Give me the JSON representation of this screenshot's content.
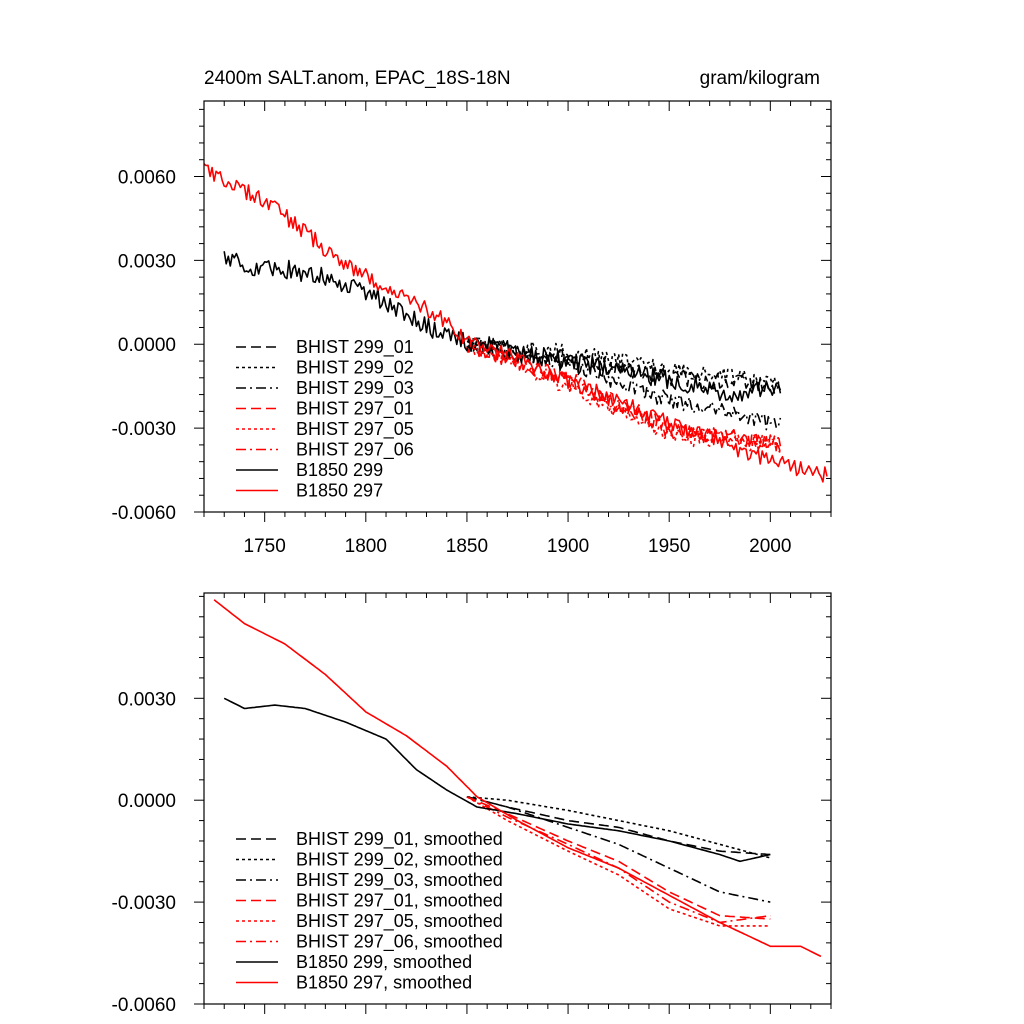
{
  "chart_data": [
    {
      "type": "line",
      "title": "2400m SALT.anom, EPAC_18S-18N",
      "units_label": "gram/kilogram",
      "xlabel": "",
      "ylabel": "",
      "xlim": [
        1720,
        2030
      ],
      "ylim": [
        -0.006,
        0.0087
      ],
      "x_ticks": [
        1750,
        1800,
        1850,
        1900,
        1950,
        2000
      ],
      "x_tick_labels": [
        "1750",
        "1800",
        "1850",
        "1900",
        "1950",
        "2000"
      ],
      "y_ticks": [
        -0.006,
        -0.003,
        0.0,
        0.003,
        0.006
      ],
      "y_tick_labels": [
        "-0.0060",
        "-0.0030",
        "0.0000",
        "0.0030",
        "0.0060"
      ],
      "legend_position": "bottom-left",
      "series": [
        {
          "name": "BHIST 299_01",
          "color": "#000000",
          "dash": "dash",
          "noise": 0.0003,
          "points": [
            [
              1850,
              0.0
            ],
            [
              1900,
              -0.0005
            ],
            [
              1950,
              -0.0012
            ],
            [
              2005,
              -0.0015
            ]
          ]
        },
        {
          "name": "BHIST 299_02",
          "color": "#000000",
          "dash": "dot",
          "noise": 0.0003,
          "points": [
            [
              1850,
              0.0
            ],
            [
              1900,
              -0.0003
            ],
            [
              1950,
              -0.0009
            ],
            [
              2005,
              -0.0014
            ]
          ]
        },
        {
          "name": "BHIST 299_03",
          "color": "#000000",
          "dash": "dashdot",
          "noise": 0.0003,
          "points": [
            [
              1850,
              0.0
            ],
            [
              1900,
              -0.0007
            ],
            [
              1950,
              -0.002
            ],
            [
              2005,
              -0.0029
            ]
          ]
        },
        {
          "name": "BHIST 297_01",
          "color": "#ff0000",
          "dash": "dash",
          "noise": 0.0003,
          "points": [
            [
              1850,
              0.0
            ],
            [
              1900,
              -0.0012
            ],
            [
              1950,
              -0.003
            ],
            [
              2005,
              -0.0036
            ]
          ]
        },
        {
          "name": "BHIST 297_05",
          "color": "#ff0000",
          "dash": "dot",
          "noise": 0.0003,
          "points": [
            [
              1850,
              0.0
            ],
            [
              1900,
              -0.0015
            ],
            [
              1950,
              -0.0033
            ],
            [
              2005,
              -0.0036
            ]
          ]
        },
        {
          "name": "BHIST 297_06",
          "color": "#ff0000",
          "dash": "dashdot",
          "noise": 0.0003,
          "points": [
            [
              1850,
              0.0
            ],
            [
              1900,
              -0.0013
            ],
            [
              1950,
              -0.0031
            ],
            [
              2005,
              -0.0035
            ]
          ]
        },
        {
          "name": "B1850 299",
          "color": "#000000",
          "dash": "solid",
          "noise": 0.00035,
          "points": [
            [
              1730,
              0.003
            ],
            [
              1745,
              0.0028
            ],
            [
              1760,
              0.0027
            ],
            [
              1790,
              0.0022
            ],
            [
              1805,
              0.0017
            ],
            [
              1820,
              0.001
            ],
            [
              1835,
              0.0005
            ],
            [
              1850,
              0.0001
            ],
            [
              1875,
              -0.0003
            ],
            [
              1900,
              -0.0006
            ],
            [
              1925,
              -0.0009
            ],
            [
              1950,
              -0.0013
            ],
            [
              1985,
              -0.0018
            ],
            [
              2005,
              -0.0016
            ]
          ]
        },
        {
          "name": "B1850 297",
          "color": "#ff0000",
          "dash": "solid",
          "noise": 0.0003,
          "points": [
            [
              1720,
              0.0063
            ],
            [
              1740,
              0.0055
            ],
            [
              1760,
              0.0046
            ],
            [
              1780,
              0.0034
            ],
            [
              1800,
              0.0024
            ],
            [
              1820,
              0.0017
            ],
            [
              1835,
              0.0011
            ],
            [
              1850,
              0.0002
            ],
            [
              1900,
              -0.0013
            ],
            [
              1950,
              -0.0028
            ],
            [
              2000,
              -0.0042
            ],
            [
              2028,
              -0.0047
            ]
          ]
        }
      ]
    },
    {
      "type": "line",
      "title": "",
      "xlabel": "",
      "ylabel": "",
      "xlim": [
        1720,
        2030
      ],
      "ylim": [
        -0.006,
        0.0061
      ],
      "x_ticks": [
        1750,
        1800,
        1850,
        1900,
        1950,
        2000
      ],
      "y_ticks": [
        -0.006,
        -0.003,
        0.0,
        0.003
      ],
      "y_tick_labels": [
        "-0.0060",
        "-0.0030",
        "0.0000",
        "0.0030"
      ],
      "legend_position": "bottom-left",
      "series": [
        {
          "name": "BHIST 299_01, smoothed",
          "color": "#000000",
          "dash": "dash",
          "points": [
            [
              1850,
              0.0001
            ],
            [
              1870,
              -0.0002
            ],
            [
              1900,
              -0.0006
            ],
            [
              1925,
              -0.0008
            ],
            [
              1950,
              -0.0012
            ],
            [
              1975,
              -0.0015
            ],
            [
              2000,
              -0.0016
            ]
          ]
        },
        {
          "name": "BHIST 299_02, smoothed",
          "color": "#000000",
          "dash": "dot",
          "points": [
            [
              1850,
              0.0001
            ],
            [
              1870,
              0.0
            ],
            [
              1900,
              -0.0003
            ],
            [
              1925,
              -0.0006
            ],
            [
              1950,
              -0.0009
            ],
            [
              1975,
              -0.0013
            ],
            [
              2000,
              -0.0017
            ]
          ]
        },
        {
          "name": "BHIST 299_03, smoothed",
          "color": "#000000",
          "dash": "dashdot",
          "points": [
            [
              1850,
              0.0001
            ],
            [
              1870,
              -0.0002
            ],
            [
              1900,
              -0.0008
            ],
            [
              1925,
              -0.0013
            ],
            [
              1950,
              -0.002
            ],
            [
              1975,
              -0.0027
            ],
            [
              2000,
              -0.003
            ]
          ]
        },
        {
          "name": "BHIST 297_01, smoothed",
          "color": "#ff0000",
          "dash": "dash",
          "points": [
            [
              1850,
              0.0001
            ],
            [
              1870,
              -0.0004
            ],
            [
              1900,
              -0.0012
            ],
            [
              1925,
              -0.0018
            ],
            [
              1950,
              -0.0027
            ],
            [
              1975,
              -0.0034
            ],
            [
              2000,
              -0.0035
            ]
          ]
        },
        {
          "name": "BHIST 297_05, smoothed",
          "color": "#ff0000",
          "dash": "dot",
          "points": [
            [
              1850,
              0.0001
            ],
            [
              1870,
              -0.0006
            ],
            [
              1900,
              -0.0015
            ],
            [
              1925,
              -0.0022
            ],
            [
              1950,
              -0.0032
            ],
            [
              1975,
              -0.0037
            ],
            [
              2000,
              -0.0037
            ]
          ]
        },
        {
          "name": "BHIST 297_06, smoothed",
          "color": "#ff0000",
          "dash": "dashdot",
          "points": [
            [
              1850,
              0.0001
            ],
            [
              1870,
              -0.0005
            ],
            [
              1900,
              -0.0013
            ],
            [
              1925,
              -0.002
            ],
            [
              1950,
              -0.003
            ],
            [
              1975,
              -0.0036
            ],
            [
              2000,
              -0.0034
            ]
          ]
        },
        {
          "name": "B1850 299, smoothed",
          "color": "#000000",
          "dash": "solid",
          "points": [
            [
              1730,
              0.003
            ],
            [
              1740,
              0.0027
            ],
            [
              1755,
              0.0028
            ],
            [
              1770,
              0.0027
            ],
            [
              1790,
              0.0023
            ],
            [
              1810,
              0.0018
            ],
            [
              1825,
              0.0009
            ],
            [
              1840,
              0.0003
            ],
            [
              1855,
              -0.0002
            ],
            [
              1875,
              -0.0004
            ],
            [
              1900,
              -0.0007
            ],
            [
              1925,
              -0.0009
            ],
            [
              1950,
              -0.0012
            ],
            [
              1975,
              -0.0016
            ],
            [
              1985,
              -0.0018
            ],
            [
              2000,
              -0.0016
            ]
          ]
        },
        {
          "name": "B1850 297, smoothed",
          "color": "#ff0000",
          "dash": "solid",
          "points": [
            [
              1725,
              0.0059
            ],
            [
              1740,
              0.0052
            ],
            [
              1760,
              0.0046
            ],
            [
              1780,
              0.0037
            ],
            [
              1800,
              0.0026
            ],
            [
              1820,
              0.0019
            ],
            [
              1840,
              0.001
            ],
            [
              1855,
              0.0001
            ],
            [
              1875,
              -0.0006
            ],
            [
              1900,
              -0.0014
            ],
            [
              1925,
              -0.002
            ],
            [
              1950,
              -0.0028
            ],
            [
              1975,
              -0.0036
            ],
            [
              2000,
              -0.0043
            ],
            [
              2015,
              -0.0043
            ],
            [
              2025,
              -0.0046
            ]
          ]
        }
      ]
    }
  ]
}
